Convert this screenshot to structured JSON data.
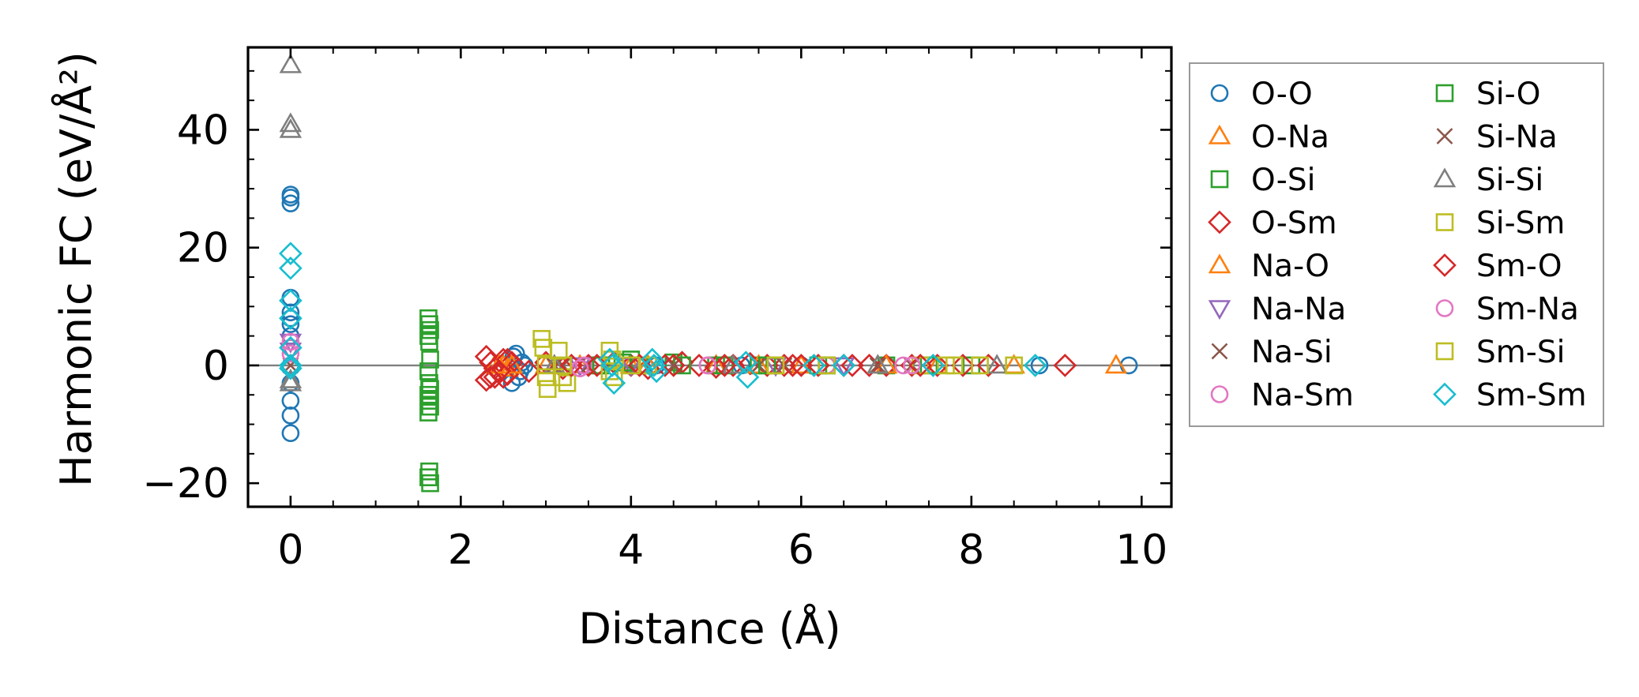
{
  "chart_data": {
    "type": "scatter",
    "xlabel": "Distance (Å)",
    "ylabel": "Harmonic FC (eV/Å²)",
    "xlim": [
      -0.5,
      10.35
    ],
    "ylim": [
      -24,
      54
    ],
    "x_ticks": [
      0,
      2,
      4,
      6,
      8,
      10
    ],
    "y_ticks": [
      -20,
      0,
      20,
      40
    ],
    "x_tick_labels": [
      "0",
      "2",
      "4",
      "6",
      "8",
      "10"
    ],
    "y_tick_labels": [
      "−20",
      "0",
      "20",
      "40"
    ],
    "zero_line": true,
    "grid": false,
    "legend_position": "outside-right",
    "series": [
      {
        "name": "O-O",
        "marker": "circle",
        "color": "#1f77b4",
        "x": [
          0,
          0,
          0,
          0,
          0,
          0,
          0,
          0,
          0,
          0,
          0,
          0,
          0,
          0,
          2.6,
          2.65,
          2.7,
          2.75,
          2.62,
          2.68,
          2.72,
          4.3,
          5.3,
          6.0,
          7.0,
          8.8,
          9.85
        ],
        "y": [
          29,
          28.5,
          27.5,
          11.5,
          9,
          8,
          7,
          5,
          3,
          -3,
          -6,
          -8.5,
          -11.5,
          0,
          -3,
          2,
          -1,
          0,
          1.5,
          -2,
          0.5,
          0,
          0,
          0,
          0,
          0,
          0
        ]
      },
      {
        "name": "O-Na",
        "marker": "triangle-up",
        "color": "#ff7f0e",
        "x": [
          2.4,
          2.5,
          2.55,
          3.0,
          3.4,
          4.0,
          5.0,
          6.0,
          7.6,
          9.7
        ],
        "y": [
          0,
          0,
          -0.5,
          0,
          0,
          0,
          0,
          0,
          0,
          0
        ]
      },
      {
        "name": "O-Si",
        "marker": "square",
        "color": "#2ca02c",
        "x": [
          1.62,
          1.63,
          1.64,
          1.62,
          1.63,
          1.64,
          1.62,
          1.63,
          1.64,
          1.62,
          1.63,
          1.64,
          1.62,
          1.63,
          1.62,
          1.64,
          3.6,
          4.0,
          4.5,
          5.0,
          5.5,
          6.2,
          7.0,
          8.0
        ],
        "y": [
          8,
          7,
          6,
          5,
          4,
          1,
          -1,
          -3,
          -4,
          -5,
          -6,
          -7,
          -8,
          -18,
          -19,
          -20,
          0,
          1,
          0.5,
          0,
          0,
          0,
          0,
          0
        ]
      },
      {
        "name": "O-Sm",
        "marker": "diamond",
        "color": "#d62728",
        "x": [
          2.3,
          2.35,
          2.4,
          2.45,
          2.5,
          2.55,
          2.3,
          2.4,
          2.5,
          2.6,
          2.8,
          3.0,
          3.2,
          3.5,
          3.8,
          4.0,
          4.2,
          4.4,
          4.6,
          4.8,
          5.0,
          5.2,
          5.4,
          5.6,
          5.8,
          6.0,
          6.2,
          6.5,
          6.8,
          7.0,
          7.3,
          7.6,
          7.9,
          8.2,
          9.1
        ],
        "y": [
          1.5,
          0.5,
          -0.5,
          -1,
          -2,
          -1.5,
          -2.5,
          -2,
          1,
          0.5,
          -1,
          0.5,
          -0.5,
          0,
          0.5,
          0,
          -0.5,
          0,
          0.5,
          0,
          -0.3,
          0,
          0.3,
          0,
          0,
          0,
          0,
          0,
          0,
          0,
          0,
          0,
          0,
          0,
          0
        ]
      },
      {
        "name": "Na-O",
        "marker": "triangle-up",
        "color": "#ff7f0e",
        "x": [
          2.45,
          2.6,
          3.1,
          4.2,
          5.5,
          7.0,
          8.5
        ],
        "y": [
          0,
          0,
          0,
          0,
          0,
          0,
          0
        ]
      },
      {
        "name": "Na-Na",
        "marker": "triangle-down",
        "color": "#9467bd",
        "x": [
          0,
          0,
          3.4,
          4.0,
          5.7,
          6.5
        ],
        "y": [
          4,
          2.5,
          0,
          0,
          0,
          0
        ]
      },
      {
        "name": "Na-Si",
        "marker": "x",
        "color": "#8c564b",
        "x": [
          0,
          3.1,
          3.5,
          4.5,
          5.5,
          6.9,
          7.3
        ],
        "y": [
          0,
          0,
          0,
          0,
          0,
          0,
          0
        ]
      },
      {
        "name": "Na-Sm",
        "marker": "circle",
        "color": "#e377c2",
        "x": [
          0,
          0,
          3.45,
          4.9,
          6.3,
          7.2
        ],
        "y": [
          3,
          2,
          0,
          0,
          0,
          0
        ]
      },
      {
        "name": "Si-O",
        "marker": "square",
        "color": "#2ca02c",
        "x": [
          3.65,
          3.9,
          4.1,
          4.6,
          5.1,
          5.6,
          6.3,
          7.5
        ],
        "y": [
          0,
          0.5,
          0,
          0,
          0,
          0,
          0,
          0
        ]
      },
      {
        "name": "Si-Na",
        "marker": "x",
        "color": "#8c564b",
        "x": [
          3.2,
          4.5,
          5.8,
          6.9
        ],
        "y": [
          0,
          0,
          0,
          0
        ]
      },
      {
        "name": "Si-Si",
        "marker": "triangle-up",
        "color": "#7f7f7f",
        "x": [
          0,
          0,
          0,
          0,
          0,
          3.1,
          5.2,
          6.9,
          8.3
        ],
        "y": [
          51,
          41,
          40,
          -3,
          -2.5,
          0,
          0,
          0,
          0
        ]
      },
      {
        "name": "Si-Sm",
        "marker": "square",
        "color": "#bcbd22",
        "x": [
          2.95,
          2.97,
          3.0,
          3.02,
          3.15,
          3.2,
          3.25,
          3.75,
          3.78,
          3.8,
          4.2,
          5.7,
          6.3,
          7.4,
          7.7,
          8.1,
          8.5
        ],
        "y": [
          4.5,
          3,
          -2,
          -4,
          2.5,
          -2,
          -3,
          2.5,
          1,
          -2,
          0,
          0,
          0,
          0,
          0,
          0,
          0
        ]
      },
      {
        "name": "Sm-O",
        "marker": "diamond",
        "color": "#d62728",
        "x": [
          2.35,
          2.45,
          2.55,
          3.3,
          3.6,
          4.1,
          4.5,
          5.1,
          5.9,
          6.6,
          7.4
        ],
        "y": [
          -2,
          -1,
          1,
          0,
          0,
          0,
          0,
          0,
          0,
          0,
          0
        ]
      },
      {
        "name": "Sm-Na",
        "marker": "circle",
        "color": "#e377c2",
        "x": [
          0,
          3.4,
          4.9,
          7.3
        ],
        "y": [
          4,
          -0.5,
          0,
          0
        ]
      },
      {
        "name": "Sm-Si",
        "marker": "square",
        "color": "#bcbd22",
        "x": [
          3.0,
          3.2,
          3.75,
          4.0,
          5.7,
          7.8
        ],
        "y": [
          0,
          0,
          -1,
          0,
          0,
          0
        ]
      },
      {
        "name": "Sm-Sm",
        "marker": "diamond",
        "color": "#17becf",
        "x": [
          0,
          0,
          0,
          0,
          0,
          0,
          0,
          3.75,
          3.78,
          3.8,
          4.25,
          4.27,
          4.3,
          5.35,
          5.37,
          6.15,
          6.5,
          7.55,
          8.75
        ],
        "y": [
          19,
          16.5,
          11,
          8,
          3,
          0,
          -0.5,
          1,
          0,
          -3,
          1,
          0,
          -1,
          0.5,
          -2,
          0,
          0,
          0,
          0
        ]
      }
    ]
  }
}
